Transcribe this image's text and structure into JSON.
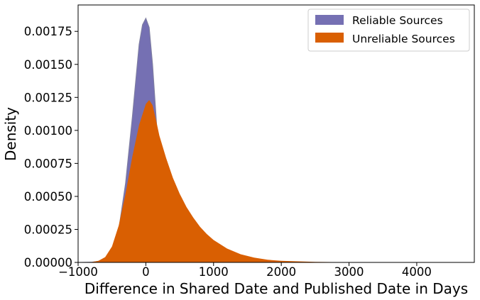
{
  "chart_data": {
    "type": "area",
    "xlabel": "Difference in Shared Date and Published Date in Days",
    "ylabel": "Density",
    "xlim": [
      -1000,
      4850
    ],
    "ylim": [
      0,
      0.00195
    ],
    "x_ticks": [
      -1000,
      0,
      1000,
      2000,
      3000,
      4000
    ],
    "x_tick_labels": [
      "−1000",
      "0",
      "1000",
      "2000",
      "3000",
      "4000"
    ],
    "y_ticks": [
      0,
      0.00025,
      0.0005,
      0.00075,
      0.001,
      0.00125,
      0.0015,
      0.00175
    ],
    "y_tick_labels": [
      "0.00000",
      "0.00025",
      "0.00050",
      "0.00075",
      "0.00100",
      "0.00125",
      "0.00150",
      "0.00175"
    ],
    "grid": false,
    "legend_position": "top-right",
    "series": [
      {
        "name": "Reliable Sources",
        "color": "#7570b3",
        "x": [
          -1000,
          -800,
          -700,
          -600,
          -500,
          -400,
          -300,
          -200,
          -100,
          -50,
          0,
          50,
          100,
          150,
          200,
          250,
          300,
          350,
          400,
          500,
          600,
          700,
          800,
          1000,
          1500,
          2000,
          3000,
          4600
        ],
        "y": [
          0.0,
          2e-06,
          8e-06,
          3e-05,
          9e-05,
          0.00025,
          0.0006,
          0.0011,
          0.00165,
          0.0018,
          0.00185,
          0.00178,
          0.0015,
          0.00112,
          0.00072,
          0.0004,
          0.00019,
          9e-05,
          4e-05,
          1.5e-05,
          8e-06,
          4e-06,
          2e-06,
          0.0,
          0.0,
          0.0,
          0.0,
          0.0
        ]
      },
      {
        "name": "Unreliable Sources",
        "color": "#d95f02",
        "x": [
          -1000,
          -800,
          -700,
          -600,
          -500,
          -400,
          -300,
          -200,
          -100,
          0,
          50,
          100,
          150,
          200,
          300,
          400,
          500,
          600,
          700,
          800,
          900,
          1000,
          1200,
          1400,
          1600,
          1800,
          2000,
          2500,
          3000,
          3500,
          4000,
          4600
        ],
        "y": [
          0.0,
          3e-06,
          1.2e-05,
          4e-05,
          0.00012,
          0.00028,
          0.00052,
          0.0008,
          0.00104,
          0.0012,
          0.00123,
          0.00119,
          0.00108,
          0.00096,
          0.00079,
          0.00064,
          0.00052,
          0.00042,
          0.00034,
          0.00027,
          0.000215,
          0.00017,
          0.000105,
          6.2e-05,
          3.6e-05,
          2e-05,
          1.2e-05,
          4e-06,
          1.5e-06,
          5e-07,
          2e-07,
          0.0
        ]
      }
    ]
  }
}
